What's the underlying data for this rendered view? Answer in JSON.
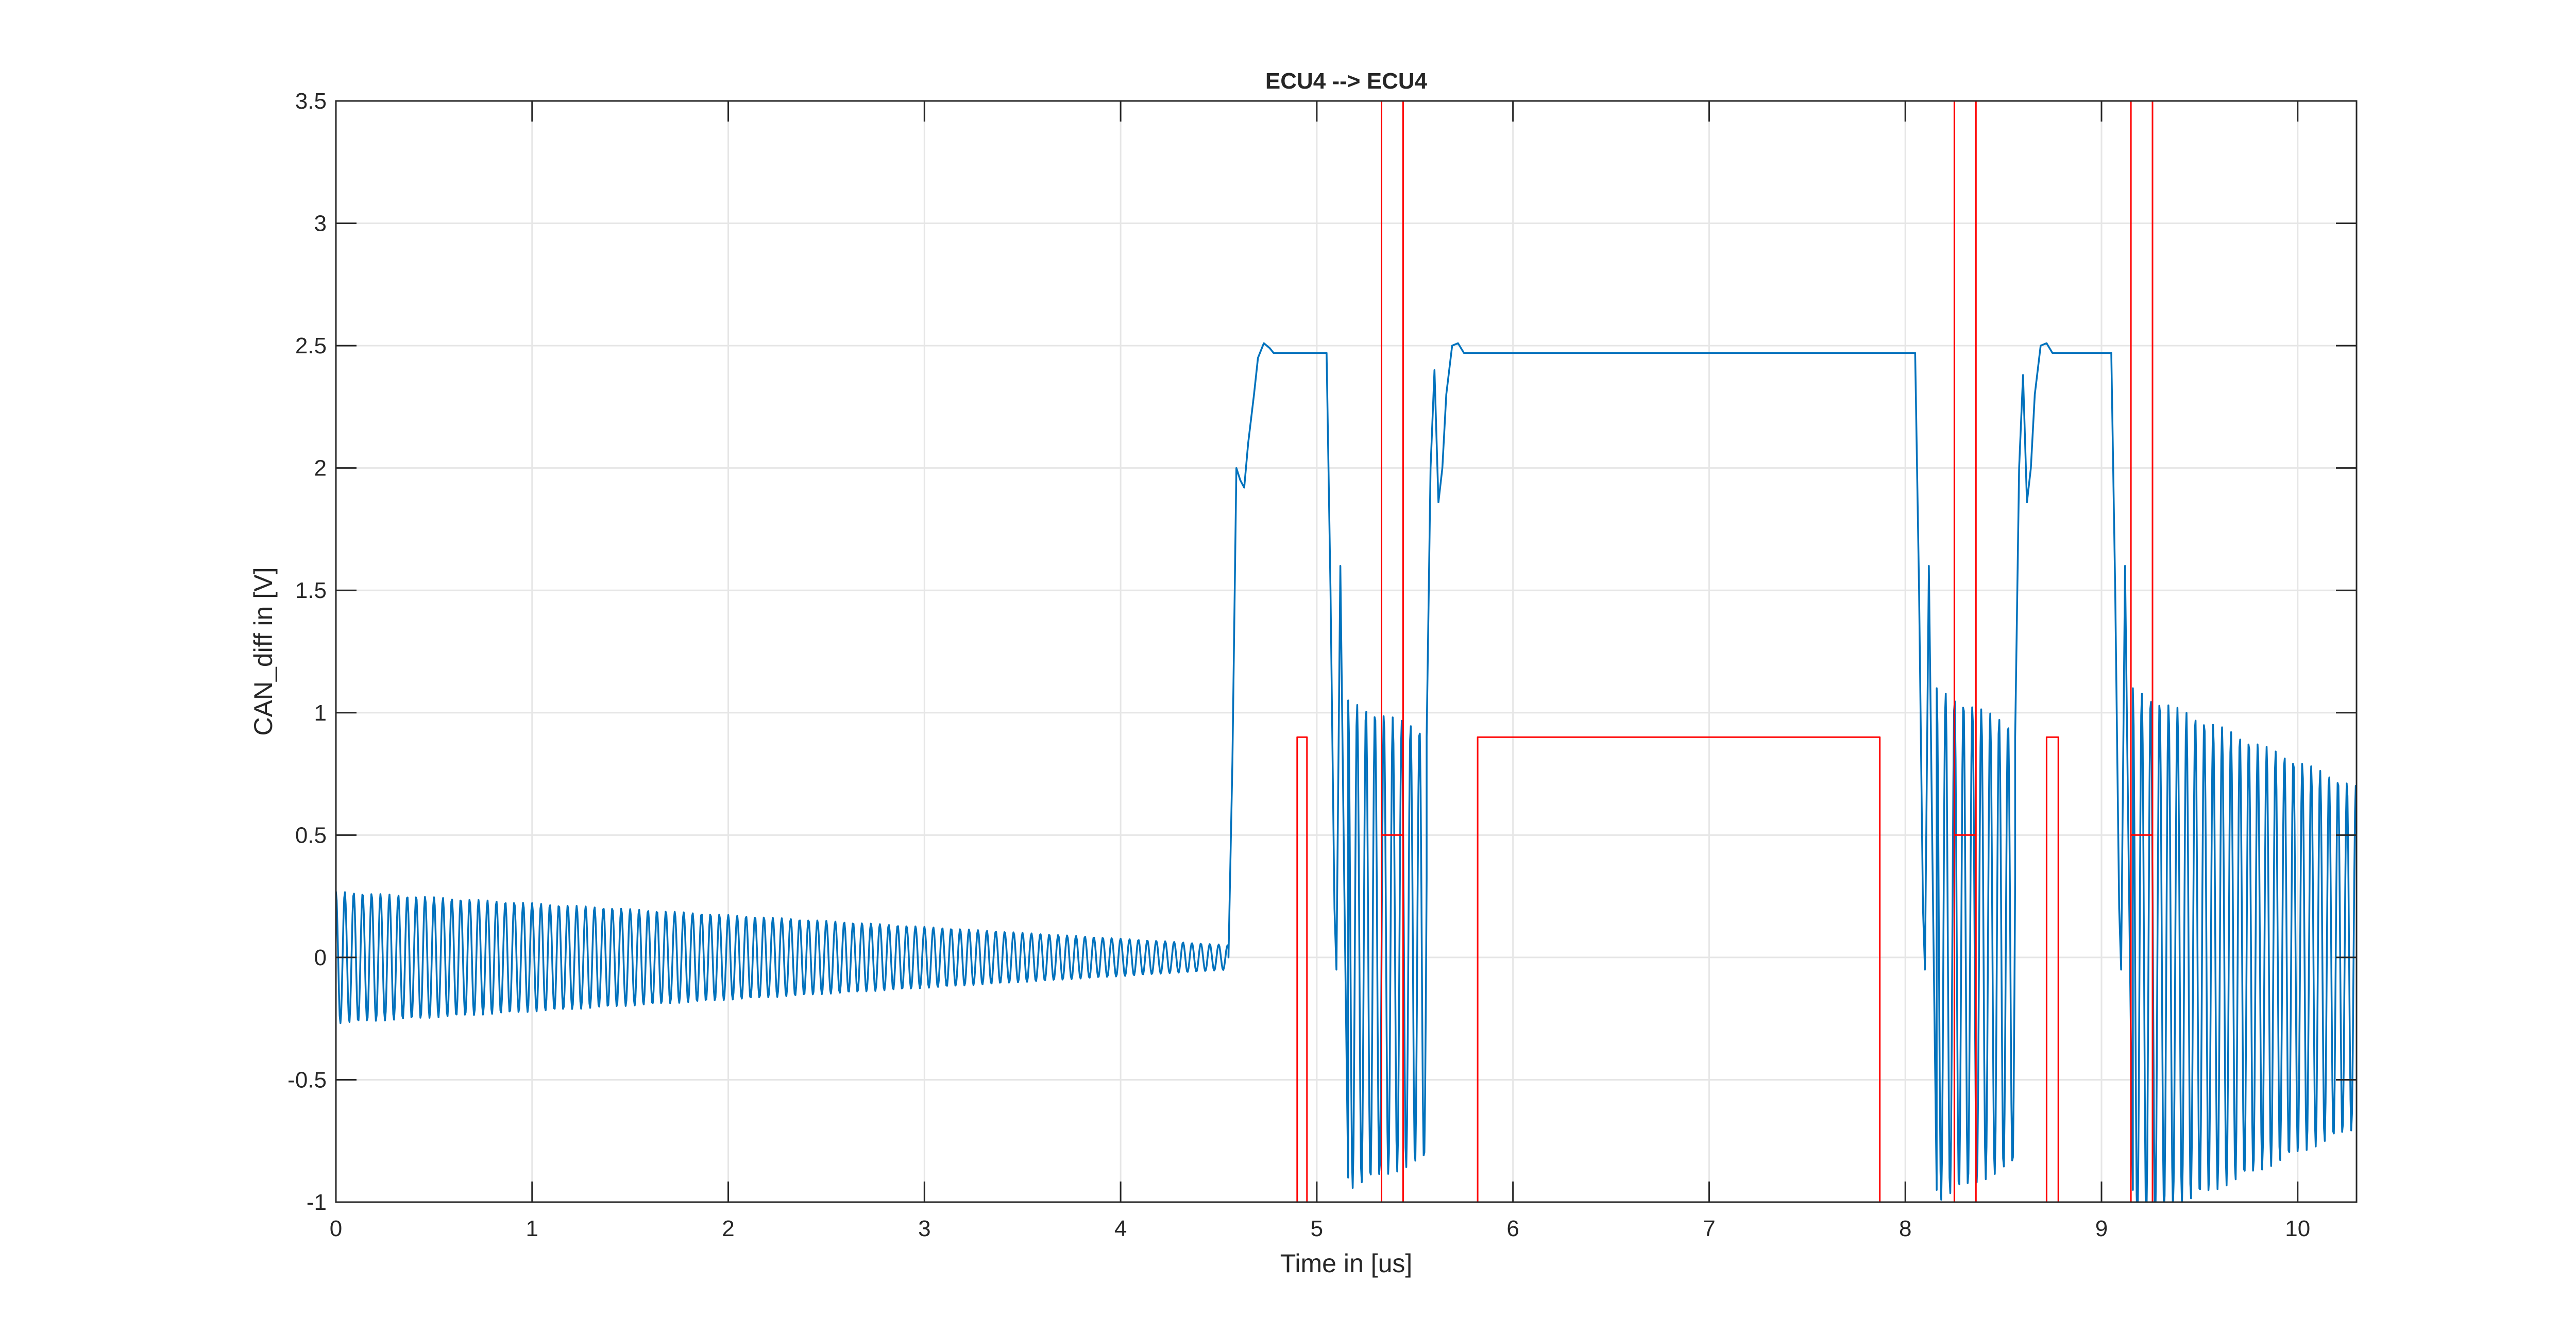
{
  "chart_data": {
    "type": "line",
    "title": "ECU4 --> ECU4",
    "xlabel": "Time in [us]",
    "ylabel": "CAN_diff in [V]",
    "xlim": [
      0,
      10.3
    ],
    "ylim": [
      -1,
      3.5
    ],
    "xticks": [
      0,
      1,
      2,
      3,
      4,
      5,
      6,
      7,
      8,
      9,
      10
    ],
    "xtick_labels": [
      "0",
      "1",
      "2",
      "3",
      "4",
      "5",
      "6",
      "7",
      "8",
      "9",
      "10"
    ],
    "yticks": [
      -1,
      -0.5,
      0,
      0.5,
      1,
      1.5,
      2,
      2.5,
      3,
      3.5
    ],
    "ytick_labels": [
      "-1",
      "-0.5",
      "0",
      "0.5",
      "1",
      "1.5",
      "2",
      "2.5",
      "3",
      "3.5"
    ],
    "grid": true,
    "colors": {
      "diff_signal": "#0072BD",
      "digital_signal": "#FF0000"
    },
    "series": [
      {
        "style": "oscillation-trace",
        "color": "#0072BD",
        "segments": [
          {
            "kind": "osc",
            "t0": 0.0,
            "t1": 4.55,
            "amp0": 0.27,
            "amp1": 0.05,
            "center": 0.0,
            "freq": 22.0
          },
          {
            "kind": "pts",
            "points": [
              [
                4.55,
                0.0
              ],
              [
                4.57,
                0.8
              ],
              [
                4.59,
                2.0
              ],
              [
                4.61,
                1.95
              ],
              [
                4.63,
                1.92
              ],
              [
                4.65,
                2.1
              ],
              [
                4.68,
                2.3
              ],
              [
                4.7,
                2.45
              ],
              [
                4.73,
                2.51
              ],
              [
                4.76,
                2.49
              ],
              [
                4.78,
                2.47
              ],
              [
                5.05,
                2.47
              ]
            ]
          },
          {
            "kind": "pts",
            "points": [
              [
                5.05,
                2.47
              ],
              [
                5.07,
                1.5
              ],
              [
                5.09,
                0.2
              ],
              [
                5.1,
                -0.05
              ],
              [
                5.12,
                1.6
              ],
              [
                5.14,
                0.3
              ],
              [
                5.16,
                -0.9
              ]
            ]
          },
          {
            "kind": "osc",
            "t0": 5.16,
            "t1": 5.56,
            "amp0": 1.0,
            "amp1": 0.88,
            "center": 0.05,
            "freq": 22.0
          },
          {
            "kind": "pts",
            "points": [
              [
                5.56,
                0.9
              ],
              [
                5.58,
                2.0
              ],
              [
                5.6,
                2.4
              ],
              [
                5.62,
                1.86
              ],
              [
                5.64,
                2.0
              ],
              [
                5.66,
                2.3
              ],
              [
                5.69,
                2.5
              ],
              [
                5.72,
                2.51
              ],
              [
                5.75,
                2.47
              ],
              [
                8.05,
                2.47
              ]
            ]
          },
          {
            "kind": "pts",
            "points": [
              [
                8.05,
                2.47
              ],
              [
                8.07,
                1.5
              ],
              [
                8.09,
                0.2
              ],
              [
                8.1,
                -0.05
              ],
              [
                8.12,
                1.6
              ],
              [
                8.14,
                0.3
              ],
              [
                8.16,
                -0.95
              ]
            ]
          },
          {
            "kind": "osc",
            "t0": 8.16,
            "t1": 8.56,
            "amp0": 1.05,
            "amp1": 0.9,
            "center": 0.05,
            "freq": 22.0
          },
          {
            "kind": "pts",
            "points": [
              [
                8.56,
                0.9
              ],
              [
                8.58,
                2.0
              ],
              [
                8.6,
                2.38
              ],
              [
                8.62,
                1.86
              ],
              [
                8.64,
                2.0
              ],
              [
                8.66,
                2.3
              ],
              [
                8.69,
                2.5
              ],
              [
                8.72,
                2.51
              ],
              [
                8.75,
                2.47
              ],
              [
                9.05,
                2.47
              ]
            ]
          },
          {
            "kind": "pts",
            "points": [
              [
                9.05,
                2.47
              ],
              [
                9.07,
                1.5
              ],
              [
                9.09,
                0.2
              ],
              [
                9.1,
                -0.05
              ],
              [
                9.12,
                1.6
              ],
              [
                9.14,
                0.3
              ],
              [
                9.16,
                -0.95
              ]
            ]
          },
          {
            "kind": "osc",
            "t0": 9.16,
            "t1": 10.3,
            "amp0": 1.1,
            "amp1": 0.7,
            "center": 0.0,
            "freq": 22.0
          }
        ]
      },
      {
        "style": "digital-trace",
        "color": "#FF0000",
        "points": [
          [
            4.9,
            -1.0
          ],
          [
            4.9,
            0.9
          ],
          [
            4.95,
            0.9
          ],
          [
            4.95,
            -1.0
          ],
          [
            5.33,
            -1.0
          ],
          [
            5.33,
            3.5
          ],
          [
            5.33,
            0.5
          ],
          [
            5.44,
            0.5
          ],
          [
            5.44,
            3.5
          ],
          [
            5.44,
            -1.0
          ],
          [
            5.82,
            -1.0
          ],
          [
            5.82,
            0.9
          ],
          [
            7.87,
            0.9
          ],
          [
            7.87,
            -1.0
          ],
          [
            8.25,
            -1.0
          ],
          [
            8.25,
            3.5
          ],
          [
            8.25,
            0.5
          ],
          [
            8.36,
            0.5
          ],
          [
            8.36,
            3.5
          ],
          [
            8.36,
            -1.0
          ],
          [
            8.72,
            -1.0
          ],
          [
            8.72,
            0.9
          ],
          [
            8.78,
            0.9
          ],
          [
            8.78,
            -1.0
          ],
          [
            9.15,
            -1.0
          ],
          [
            9.15,
            3.5
          ],
          [
            9.15,
            0.5
          ],
          [
            9.26,
            0.5
          ],
          [
            9.26,
            3.5
          ],
          [
            9.26,
            -1.0
          ]
        ]
      }
    ]
  }
}
